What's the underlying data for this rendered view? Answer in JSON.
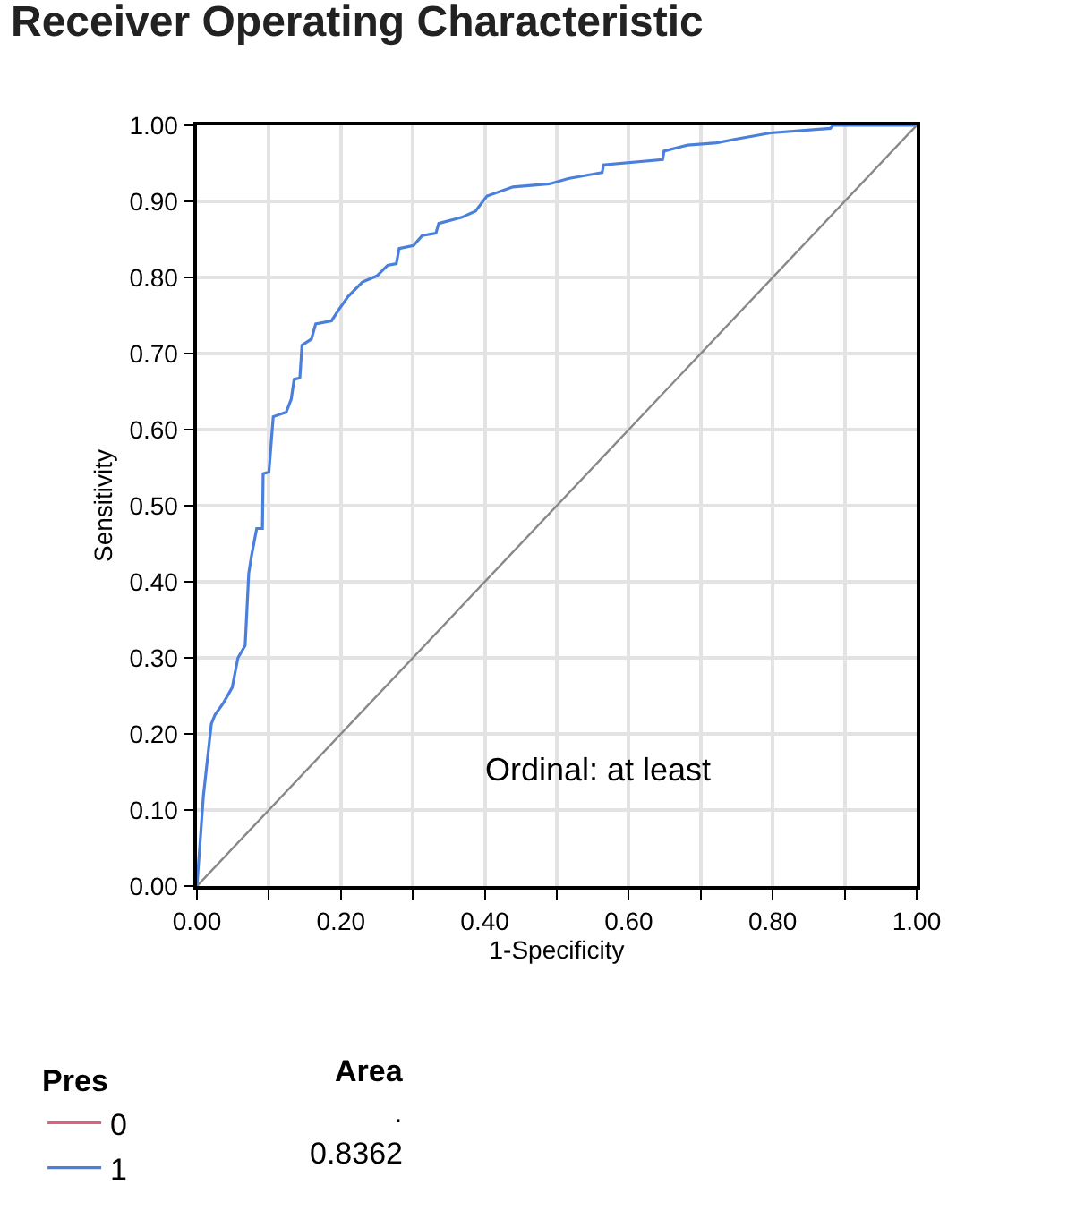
{
  "chart_data": {
    "type": "line",
    "title": "Receiver Operating Characteristic",
    "xlabel": "1-Specificity",
    "ylabel": "Sensitivity",
    "xlim": [
      0,
      1
    ],
    "ylim": [
      0,
      1
    ],
    "xticks": [
      {
        "value": 0,
        "label": "0.00"
      },
      {
        "value": 0.1,
        "label": null
      },
      {
        "value": 0.2,
        "label": "0.20"
      },
      {
        "value": 0.3,
        "label": null
      },
      {
        "value": 0.4,
        "label": "0.40"
      },
      {
        "value": 0.5,
        "label": null
      },
      {
        "value": 0.6,
        "label": "0.60"
      },
      {
        "value": 0.7,
        "label": null
      },
      {
        "value": 0.8,
        "label": "0.80"
      },
      {
        "value": 0.9,
        "label": null
      },
      {
        "value": 1,
        "label": "1.00"
      }
    ],
    "yticks": [
      {
        "value": 0,
        "label": "0.00"
      },
      {
        "value": 0.1,
        "label": "0.10"
      },
      {
        "value": 0.2,
        "label": "0.20"
      },
      {
        "value": 0.3,
        "label": "0.30"
      },
      {
        "value": 0.4,
        "label": "0.40"
      },
      {
        "value": 0.5,
        "label": "0.50"
      },
      {
        "value": 0.6,
        "label": "0.60"
      },
      {
        "value": 0.7,
        "label": "0.70"
      },
      {
        "value": 0.8,
        "label": "0.80"
      },
      {
        "value": 0.9,
        "label": "0.90"
      },
      {
        "value": 1,
        "label": "1.00"
      }
    ],
    "grid": true,
    "legend": "bottom left",
    "legend_title": "Pres",
    "marker": "none",
    "line_style": "solid",
    "series": [
      {
        "name": "0",
        "color": "#e0607a"
      },
      {
        "name": "1",
        "color": "#4a7fdc",
        "x": [
          0,
          0.009,
          0.02,
          0.025,
          0.037,
          0.049,
          0.057,
          0.067,
          0.072,
          0.076,
          0.083,
          0.091,
          0.092,
          0.1,
          0.106,
          0.124,
          0.131,
          0.135,
          0.143,
          0.146,
          0.159,
          0.165,
          0.187,
          0.198,
          0.21,
          0.23,
          0.25,
          0.265,
          0.277,
          0.281,
          0.301,
          0.313,
          0.332,
          0.336,
          0.368,
          0.387,
          0.403,
          0.439,
          0.49,
          0.516,
          0.563,
          0.565,
          0.647,
          0.649,
          0.682,
          0.722,
          0.75,
          0.797,
          0.88,
          0.884,
          1
        ],
        "values": [
          0,
          0.119,
          0.213,
          0.225,
          0.241,
          0.261,
          0.3,
          0.316,
          0.411,
          0.435,
          0.47,
          0.47,
          0.542,
          0.544,
          0.617,
          0.623,
          0.64,
          0.666,
          0.668,
          0.711,
          0.719,
          0.739,
          0.743,
          0.759,
          0.775,
          0.794,
          0.802,
          0.816,
          0.818,
          0.838,
          0.842,
          0.855,
          0.858,
          0.871,
          0.879,
          0.887,
          0.907,
          0.919,
          0.923,
          0.93,
          0.938,
          0.948,
          0.955,
          0.966,
          0.974,
          0.977,
          0.982,
          0.99,
          0.996,
          1,
          1
        ]
      },
      {
        "color": "#888888",
        "x": [
          0,
          1
        ],
        "values": [
          0,
          1
        ]
      }
    ],
    "annotations": [
      "Ordinal: at least",
      "Area",
      ".",
      "0.8362"
    ]
  }
}
